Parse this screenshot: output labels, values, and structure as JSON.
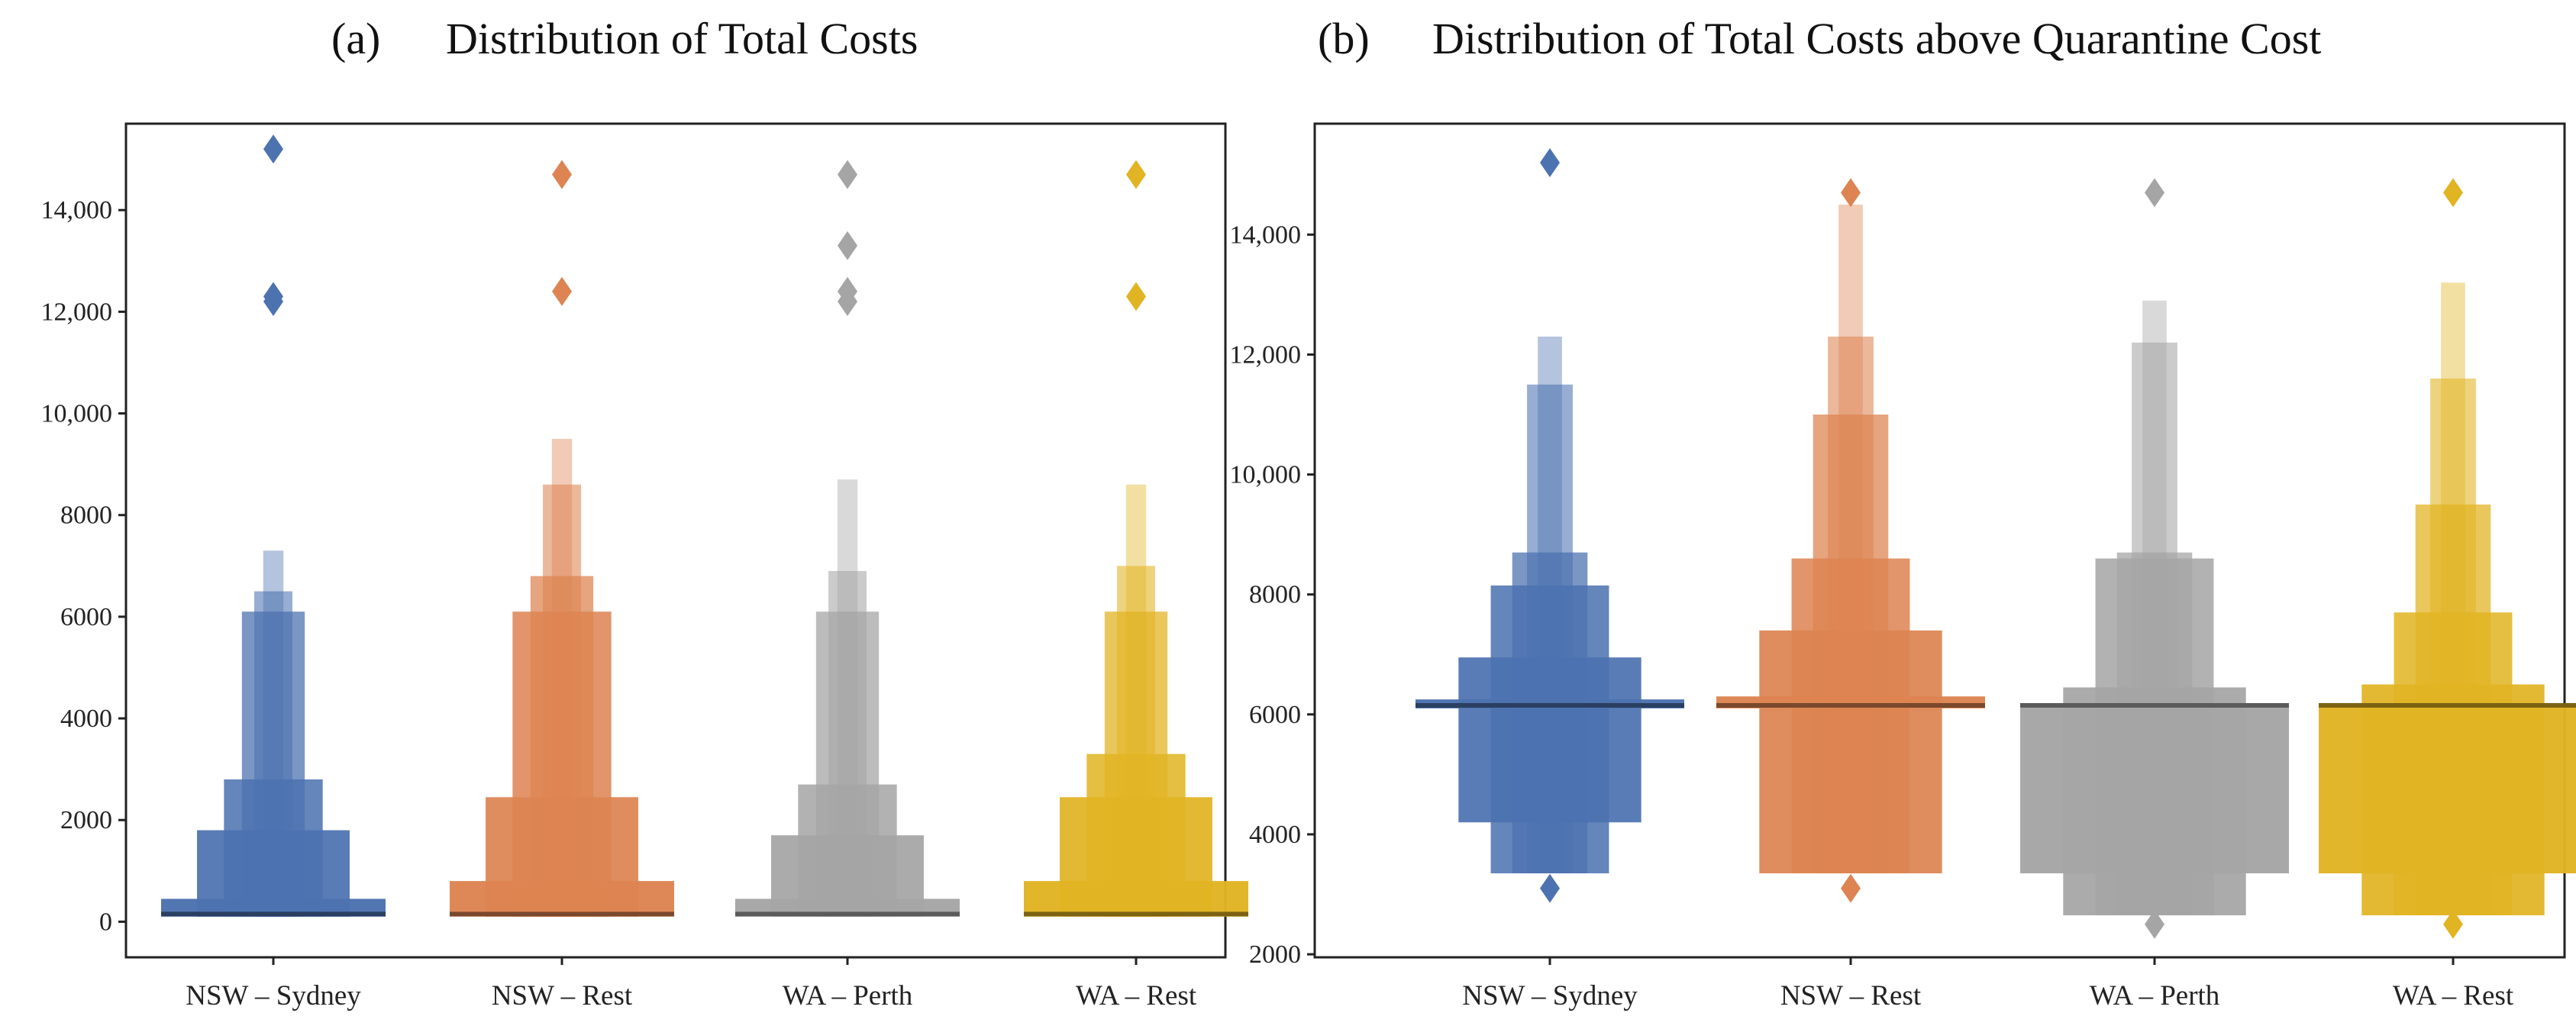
{
  "chart_data": [
    {
      "type": "boxen",
      "panel": "(a)",
      "title": "Distribution of Total Costs",
      "xlabel": "",
      "ylabel": "",
      "ylim": [
        -700,
        15700
      ],
      "yticks": [
        0,
        2000,
        4000,
        6000,
        8000,
        10000,
        12000,
        14000
      ],
      "ytick_labels": [
        "0",
        "2000",
        "4000",
        "6000",
        "8000",
        "10,000",
        "12,000",
        "14,000"
      ],
      "grid": false,
      "categories": [
        "NSW – Sydney",
        "NSW – Rest",
        "WA – Perth",
        "WA – Rest"
      ],
      "series": [
        {
          "name": "NSW – Sydney",
          "color": "#4c72b0",
          "median": 150,
          "boxes": [
            [
              100,
              450
            ],
            [
              100,
              1800
            ],
            [
              100,
              2800
            ],
            [
              100,
              6100
            ],
            [
              100,
              6500
            ],
            [
              100,
              7300
            ]
          ],
          "outliers": [
            12200,
            12300,
            15200
          ]
        },
        {
          "name": "NSW – Rest",
          "color": "#dd8452",
          "median": 150,
          "boxes": [
            [
              100,
              800
            ],
            [
              100,
              2450
            ],
            [
              100,
              6100
            ],
            [
              100,
              6800
            ],
            [
              100,
              8600
            ],
            [
              100,
              9500
            ]
          ],
          "outliers": [
            12400,
            14700
          ]
        },
        {
          "name": "WA – Perth",
          "color": "#a5a5a5",
          "median": 150,
          "boxes": [
            [
              100,
              450
            ],
            [
              100,
              1700
            ],
            [
              100,
              2700
            ],
            [
              100,
              6100
            ],
            [
              100,
              6900
            ],
            [
              100,
              8700
            ]
          ],
          "outliers": [
            12200,
            12400,
            13300,
            14700
          ]
        },
        {
          "name": "WA – Rest",
          "color": "#e1b423",
          "median": 150,
          "boxes": [
            [
              100,
              800
            ],
            [
              100,
              2450
            ],
            [
              100,
              3300
            ],
            [
              100,
              6100
            ],
            [
              100,
              7000
            ],
            [
              100,
              8600
            ]
          ],
          "outliers": [
            12300,
            14700
          ]
        }
      ]
    },
    {
      "type": "boxen",
      "panel": "(b)",
      "title": "Distribution of Total Costs above Quarantine Cost",
      "xlabel": "",
      "ylabel": "",
      "ylim": [
        1950,
        15850
      ],
      "yticks": [
        2000,
        4000,
        6000,
        8000,
        10000,
        12000,
        14000
      ],
      "ytick_labels": [
        "2000",
        "4000",
        "6000",
        "8000",
        "10,000",
        "12,000",
        "14,000"
      ],
      "grid": false,
      "categories": [
        "NSW – Sydney",
        "NSW – Rest",
        "WA – Perth",
        "WA – Rest"
      ],
      "series": [
        {
          "name": "NSW – Sydney",
          "color": "#4c72b0",
          "median": 6150,
          "boxes": [
            [
              6100,
              6250
            ],
            [
              4200,
              6950
            ],
            [
              3350,
              8150
            ],
            [
              3350,
              8700
            ],
            [
              3350,
              11500
            ],
            [
              3350,
              12300
            ]
          ],
          "outliers": [
            3100,
            15200
          ]
        },
        {
          "name": "NSW – Rest",
          "color": "#dd8452",
          "median": 6150,
          "boxes": [
            [
              6100,
              6300
            ],
            [
              3350,
              7400
            ],
            [
              3350,
              8600
            ],
            [
              3350,
              11000
            ],
            [
              3350,
              12300
            ],
            [
              3350,
              14500
            ]
          ],
          "outliers": [
            3100,
            14700
          ]
        },
        {
          "name": "WA – Perth",
          "color": "#a5a5a5",
          "median": 6150,
          "boxes": [
            [
              3350,
              6150
            ],
            [
              2650,
              6450
            ],
            [
              2650,
              8600
            ],
            [
              2650,
              8700
            ],
            [
              2650,
              12200
            ],
            [
              2650,
              12900
            ]
          ],
          "outliers": [
            2500,
            14700
          ]
        },
        {
          "name": "WA – Rest",
          "color": "#e1b423",
          "median": 6150,
          "boxes": [
            [
              3350,
              6150
            ],
            [
              2650,
              6500
            ],
            [
              2650,
              7700
            ],
            [
              2650,
              9500
            ],
            [
              2650,
              11600
            ],
            [
              2650,
              13200
            ]
          ],
          "outliers": [
            2500,
            14700
          ]
        }
      ]
    }
  ]
}
